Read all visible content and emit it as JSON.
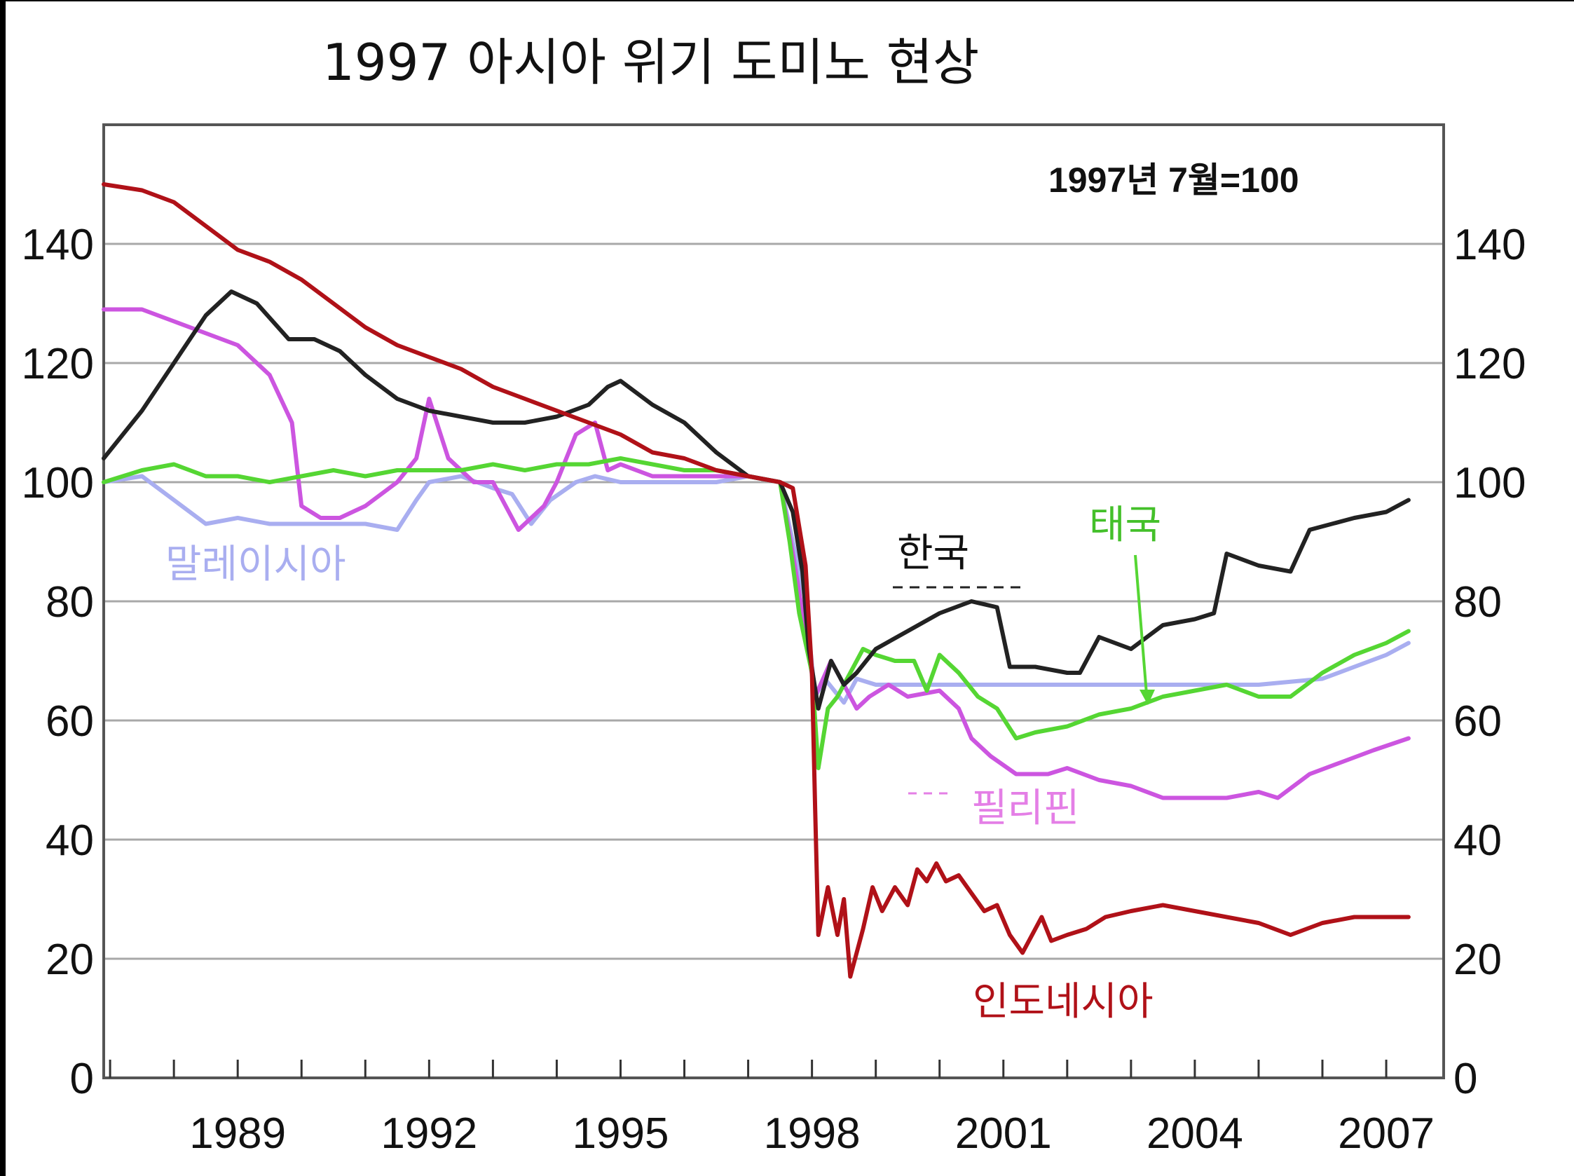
{
  "chart_data": {
    "type": "line",
    "title": "1997 아시아 위기 도미노 현상",
    "note": "1997년 7월=100",
    "xlabel": "",
    "ylabel": "",
    "xlim": [
      1986.9,
      2007.9
    ],
    "ylim": [
      0,
      160
    ],
    "grid": true,
    "y_ticks": [
      0,
      20,
      40,
      60,
      80,
      100,
      120,
      140
    ],
    "x_ticks": [
      1989,
      1992,
      1995,
      1998,
      2001,
      2004,
      2007
    ],
    "series": [
      {
        "name": "인도네시아",
        "color": "#b01118",
        "points": [
          [
            1986.9,
            150
          ],
          [
            1987.5,
            149
          ],
          [
            1988.0,
            147
          ],
          [
            1988.5,
            143
          ],
          [
            1989.0,
            139
          ],
          [
            1989.5,
            137
          ],
          [
            1990.0,
            134
          ],
          [
            1990.5,
            130
          ],
          [
            1991.0,
            126
          ],
          [
            1991.5,
            123
          ],
          [
            1992.0,
            121
          ],
          [
            1992.5,
            119
          ],
          [
            1993.0,
            116
          ],
          [
            1993.5,
            114
          ],
          [
            1994.0,
            112
          ],
          [
            1994.5,
            110
          ],
          [
            1995.0,
            108
          ],
          [
            1995.5,
            105
          ],
          [
            1996.0,
            104
          ],
          [
            1996.5,
            102
          ],
          [
            1997.0,
            101
          ],
          [
            1997.5,
            100
          ],
          [
            1997.7,
            99
          ],
          [
            1997.9,
            86
          ],
          [
            1998.0,
            68
          ],
          [
            1998.05,
            45
          ],
          [
            1998.1,
            24
          ],
          [
            1998.25,
            32
          ],
          [
            1998.4,
            24
          ],
          [
            1998.5,
            30
          ],
          [
            1998.6,
            17
          ],
          [
            1998.8,
            25
          ],
          [
            1998.95,
            32
          ],
          [
            1999.1,
            28
          ],
          [
            1999.3,
            32
          ],
          [
            1999.5,
            29
          ],
          [
            1999.65,
            35
          ],
          [
            1999.8,
            33
          ],
          [
            1999.95,
            36
          ],
          [
            2000.1,
            33
          ],
          [
            2000.3,
            34
          ],
          [
            2000.5,
            31
          ],
          [
            2000.7,
            28
          ],
          [
            2000.9,
            29
          ],
          [
            2001.1,
            24
          ],
          [
            2001.3,
            21
          ],
          [
            2001.5,
            25
          ],
          [
            2001.6,
            27
          ],
          [
            2001.75,
            23
          ],
          [
            2002.0,
            24
          ],
          [
            2002.3,
            25
          ],
          [
            2002.6,
            27
          ],
          [
            2003.0,
            28
          ],
          [
            2003.5,
            29
          ],
          [
            2004.0,
            28
          ],
          [
            2004.5,
            27
          ],
          [
            2005.0,
            26
          ],
          [
            2005.5,
            24
          ],
          [
            2006.0,
            26
          ],
          [
            2006.5,
            27
          ],
          [
            2007.0,
            27
          ],
          [
            2007.35,
            27
          ]
        ]
      },
      {
        "name": "한국",
        "color": "#222222",
        "points": [
          [
            1986.9,
            104
          ],
          [
            1987.5,
            112
          ],
          [
            1988.0,
            120
          ],
          [
            1988.5,
            128
          ],
          [
            1988.9,
            132
          ],
          [
            1989.3,
            130
          ],
          [
            1989.8,
            124
          ],
          [
            1990.2,
            124
          ],
          [
            1990.6,
            122
          ],
          [
            1991.0,
            118
          ],
          [
            1991.5,
            114
          ],
          [
            1992.0,
            112
          ],
          [
            1992.5,
            111
          ],
          [
            1993.0,
            110
          ],
          [
            1993.5,
            110
          ],
          [
            1994.0,
            111
          ],
          [
            1994.5,
            113
          ],
          [
            1994.8,
            116
          ],
          [
            1995.0,
            117
          ],
          [
            1995.5,
            113
          ],
          [
            1996.0,
            110
          ],
          [
            1996.5,
            105
          ],
          [
            1997.0,
            101
          ],
          [
            1997.5,
            100
          ],
          [
            1997.7,
            95
          ],
          [
            1997.85,
            85
          ],
          [
            1997.95,
            72
          ],
          [
            1998.1,
            62
          ],
          [
            1998.3,
            70
          ],
          [
            1998.5,
            66
          ],
          [
            1998.7,
            68
          ],
          [
            1999.0,
            72
          ],
          [
            1999.5,
            75
          ],
          [
            2000.0,
            78
          ],
          [
            2000.5,
            80
          ],
          [
            2000.9,
            79
          ],
          [
            2001.1,
            69
          ],
          [
            2001.5,
            69
          ],
          [
            2002.0,
            68
          ],
          [
            2002.2,
            68
          ],
          [
            2002.5,
            74
          ],
          [
            2003.0,
            72
          ],
          [
            2003.5,
            76
          ],
          [
            2004.0,
            77
          ],
          [
            2004.3,
            78
          ],
          [
            2004.5,
            88
          ],
          [
            2005.0,
            86
          ],
          [
            2005.5,
            85
          ],
          [
            2005.8,
            92
          ],
          [
            2006.5,
            94
          ],
          [
            2007.0,
            95
          ],
          [
            2007.35,
            97
          ]
        ]
      },
      {
        "name": "태국",
        "color": "#55d633",
        "points": [
          [
            1986.9,
            100
          ],
          [
            1987.5,
            102
          ],
          [
            1988.0,
            103
          ],
          [
            1988.5,
            101
          ],
          [
            1989.0,
            101
          ],
          [
            1989.5,
            100
          ],
          [
            1990.0,
            101
          ],
          [
            1990.5,
            102
          ],
          [
            1991.0,
            101
          ],
          [
            1991.5,
            102
          ],
          [
            1992.0,
            102
          ],
          [
            1992.5,
            102
          ],
          [
            1993.0,
            103
          ],
          [
            1993.5,
            102
          ],
          [
            1994.0,
            103
          ],
          [
            1994.5,
            103
          ],
          [
            1995.0,
            104
          ],
          [
            1995.5,
            103
          ],
          [
            1996.0,
            102
          ],
          [
            1996.5,
            102
          ],
          [
            1997.0,
            101
          ],
          [
            1997.5,
            100
          ],
          [
            1997.65,
            90
          ],
          [
            1997.8,
            78
          ],
          [
            1998.0,
            68
          ],
          [
            1998.1,
            52
          ],
          [
            1998.25,
            62
          ],
          [
            1998.4,
            64
          ],
          [
            1998.6,
            68
          ],
          [
            1998.8,
            72
          ],
          [
            1999.0,
            71
          ],
          [
            1999.3,
            70
          ],
          [
            1999.6,
            70
          ],
          [
            1999.8,
            65
          ],
          [
            2000.0,
            71
          ],
          [
            2000.3,
            68
          ],
          [
            2000.6,
            64
          ],
          [
            2000.9,
            62
          ],
          [
            2001.2,
            57
          ],
          [
            2001.5,
            58
          ],
          [
            2002.0,
            59
          ],
          [
            2002.5,
            61
          ],
          [
            2003.0,
            62
          ],
          [
            2003.5,
            64
          ],
          [
            2004.0,
            65
          ],
          [
            2004.5,
            66
          ],
          [
            2005.0,
            64
          ],
          [
            2005.5,
            64
          ],
          [
            2006.0,
            68
          ],
          [
            2006.5,
            71
          ],
          [
            2007.0,
            73
          ],
          [
            2007.35,
            75
          ]
        ]
      },
      {
        "name": "필리핀",
        "color": "#cc55e0",
        "points": [
          [
            1986.9,
            129
          ],
          [
            1987.5,
            129
          ],
          [
            1988.0,
            127
          ],
          [
            1988.5,
            125
          ],
          [
            1989.0,
            123
          ],
          [
            1989.5,
            118
          ],
          [
            1989.85,
            110
          ],
          [
            1990.0,
            96
          ],
          [
            1990.3,
            94
          ],
          [
            1990.6,
            94
          ],
          [
            1991.0,
            96
          ],
          [
            1991.5,
            100
          ],
          [
            1991.8,
            104
          ],
          [
            1992.0,
            114
          ],
          [
            1992.3,
            104
          ],
          [
            1992.7,
            100
          ],
          [
            1993.0,
            100
          ],
          [
            1993.4,
            92
          ],
          [
            1993.8,
            96
          ],
          [
            1994.0,
            100
          ],
          [
            1994.3,
            108
          ],
          [
            1994.6,
            110
          ],
          [
            1994.8,
            102
          ],
          [
            1995.0,
            103
          ],
          [
            1995.5,
            101
          ],
          [
            1996.0,
            101
          ],
          [
            1996.5,
            101
          ],
          [
            1997.0,
            101
          ],
          [
            1997.5,
            100
          ],
          [
            1997.7,
            88
          ],
          [
            1997.9,
            75
          ],
          [
            1998.05,
            64
          ],
          [
            1998.3,
            70
          ],
          [
            1998.5,
            66
          ],
          [
            1998.7,
            62
          ],
          [
            1998.9,
            64
          ],
          [
            1999.2,
            66
          ],
          [
            1999.5,
            64
          ],
          [
            2000.0,
            65
          ],
          [
            2000.3,
            62
          ],
          [
            2000.5,
            57
          ],
          [
            2000.8,
            54
          ],
          [
            2001.2,
            51
          ],
          [
            2001.7,
            51
          ],
          [
            2002.0,
            52
          ],
          [
            2002.5,
            50
          ],
          [
            2003.0,
            49
          ],
          [
            2003.5,
            47
          ],
          [
            2004.0,
            47
          ],
          [
            2004.5,
            47
          ],
          [
            2005.0,
            48
          ],
          [
            2005.3,
            47
          ],
          [
            2005.8,
            51
          ],
          [
            2006.3,
            53
          ],
          [
            2006.8,
            55
          ],
          [
            2007.35,
            57
          ]
        ]
      },
      {
        "name": "말레이시아",
        "color": "#a9aef0",
        "points": [
          [
            1986.9,
            100
          ],
          [
            1987.5,
            101
          ],
          [
            1988.0,
            97
          ],
          [
            1988.5,
            93
          ],
          [
            1989.0,
            94
          ],
          [
            1989.5,
            93
          ],
          [
            1990.0,
            93
          ],
          [
            1990.5,
            93
          ],
          [
            1991.0,
            93
          ],
          [
            1991.5,
            92
          ],
          [
            1991.8,
            97
          ],
          [
            1992.0,
            100
          ],
          [
            1992.5,
            101
          ],
          [
            1993.0,
            99
          ],
          [
            1993.3,
            98
          ],
          [
            1993.6,
            93
          ],
          [
            1993.9,
            97
          ],
          [
            1994.3,
            100
          ],
          [
            1994.6,
            101
          ],
          [
            1995.0,
            100
          ],
          [
            1995.5,
            100
          ],
          [
            1996.0,
            100
          ],
          [
            1996.5,
            100
          ],
          [
            1997.0,
            101
          ],
          [
            1997.5,
            100
          ],
          [
            1997.7,
            90
          ],
          [
            1997.9,
            80
          ],
          [
            1998.05,
            64
          ],
          [
            1998.2,
            67
          ],
          [
            1998.5,
            63
          ],
          [
            1998.7,
            67
          ],
          [
            1999.0,
            66
          ],
          [
            2000.0,
            66
          ],
          [
            2001.0,
            66
          ],
          [
            2002.0,
            66
          ],
          [
            2003.0,
            66
          ],
          [
            2004.0,
            66
          ],
          [
            2005.0,
            66
          ],
          [
            2006.0,
            67
          ],
          [
            2007.0,
            71
          ],
          [
            2007.35,
            73
          ]
        ]
      }
    ]
  },
  "labels": {
    "korea": "한국",
    "thailand": "태국",
    "philippines": "필리핀",
    "indonesia": "인도네시아",
    "malaysia": "말레이시아"
  }
}
